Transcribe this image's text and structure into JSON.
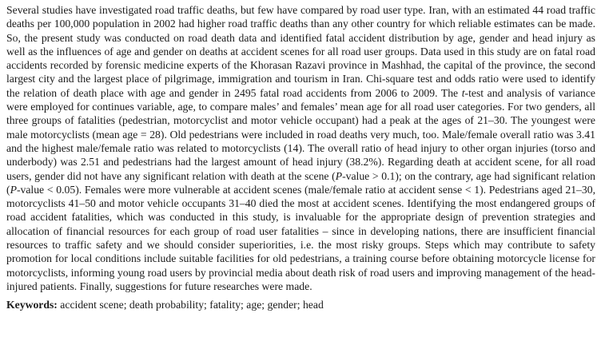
{
  "abstract": {
    "seg1": "Several studies have investigated road traffic deaths, but few have compared by road user type. Iran, with an estimated 44 road traffic deaths per 100,000 population in 2002 had higher road traffic deaths than any other country for which reliable estimates can be made. So, the present study was conducted on road death data and identified fatal accident distribution by age, gender and head injury as well as the influences of age and gender on deaths at accident scenes for all road user groups. Data used in this study are on fatal road accidents recorded by forensic medicine experts of the Khorasan Razavi province in Mashhad, the capital of the province, the second largest city and the largest place of pilgrimage, immigration and tourism in Iran. Chi-square test and odds ratio were used to identify the relation of death place with age and gender in 2495 fatal road accidents from 2006 to 2009. The ",
    "t_italic": "t",
    "seg2": "-test and analysis of variance were employed for continues variable, age, to compare males’ and females’ mean age for all road user categories. For two genders, all three groups of fatalities (pedestrian, motorcyclist and motor vehicle occupant) had a peak at the ages of 21–30. The youngest were male motorcyclists (mean age = 28). Old pedestrians were included in road deaths very much, too. Male/female overall ratio was 3.41 and the highest male/female ratio was related to motorcyclists (14). The overall ratio of head injury to other organ injuries (torso and underbody) was 2.51 and pedestrians had the largest amount of head injury (38.2%). Regarding death at accident scene, for all road users, gender did not have any significant relation with death at the scene (",
    "p1_italic": "P",
    "seg3": "-value > 0.1); on the contrary, age had significant relation (",
    "p2_italic": "P",
    "seg4": "-value < 0.05). Females were more vulnerable at accident scenes (male/female ratio at accident sense < 1). Pedestrians aged 21–30, motorcyclists 41–50 and motor vehicle occupants 31–40 died the most at accident scenes. Identifying the most endangered groups of road accident fatalities, which was conducted in this study, is invaluable for the appropriate design of prevention strategies and allocation of financial resources for each group of road user fatalities – since in developing nations, there are insufficient financial resources to traffic safety and we should consider superiorities, i.e. the most risky groups. Steps which may contribute to safety promotion for local conditions include suitable facilities for old pedestrians, a training course before obtaining motorcycle license for motorcyclists, informing young road users by provincial media about death risk of road users and improving management of the head-injured patients. Finally, suggestions for future researches were made."
  },
  "keywords": {
    "label": "Keywords:",
    "text": " accident scene; death probability; fatality; age; gender; head"
  }
}
